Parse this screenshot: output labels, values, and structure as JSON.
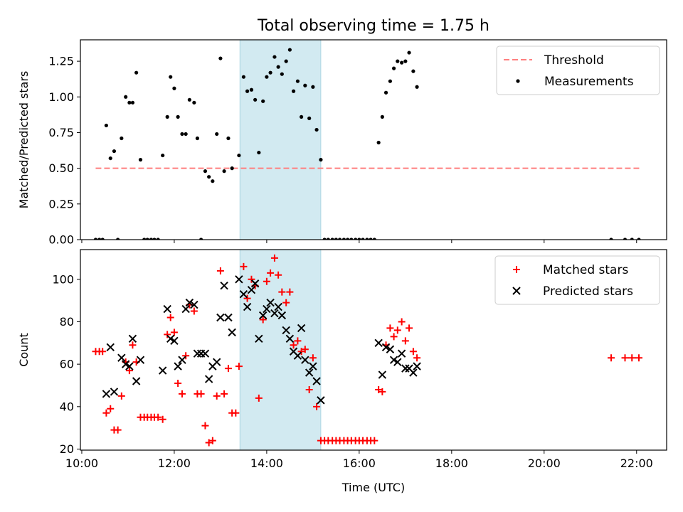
{
  "figure": {
    "title": "Total observing time = 1.75 h"
  },
  "chart_data": [
    {
      "type": "scatter",
      "ylabel": "Matched/Predicted stars",
      "xlabel": "",
      "xlim": [
        9.97,
        22.65
      ],
      "ylim": [
        0,
        1.4
      ],
      "yticks": [
        0.0,
        0.25,
        0.5,
        0.75,
        1.0,
        1.25
      ],
      "ytick_labels": [
        "0.00",
        "0.25",
        "0.50",
        "0.75",
        "1.00",
        "1.25"
      ],
      "xticks": [
        10,
        12,
        14,
        16,
        18,
        20,
        22
      ],
      "xtick_labels": [],
      "grid": false,
      "legend_position": "upper right",
      "shaded_region": {
        "x_start": 13.42,
        "x_end": 15.17,
        "color": "#add8e6"
      },
      "threshold": {
        "name": "Threshold",
        "y": 0.5,
        "x": [
          10.3,
          22.1
        ],
        "color": "#ff7f7f",
        "style": "dashed"
      },
      "series": [
        {
          "name": "Measurements",
          "marker": "dot",
          "color": "#000000",
          "points": [
            [
              10.3,
              0
            ],
            [
              10.38,
              0
            ],
            [
              10.45,
              0
            ],
            [
              10.53,
              0.8
            ],
            [
              10.62,
              0.57
            ],
            [
              10.7,
              0.62
            ],
            [
              10.78,
              0
            ],
            [
              10.86,
              0.71
            ],
            [
              10.95,
              1.0
            ],
            [
              11.03,
              0.96
            ],
            [
              11.1,
              0.96
            ],
            [
              11.18,
              1.17
            ],
            [
              11.27,
              0.56
            ],
            [
              11.35,
              0
            ],
            [
              11.42,
              0
            ],
            [
              11.5,
              0
            ],
            [
              11.57,
              0
            ],
            [
              11.65,
              0
            ],
            [
              11.75,
              0.59
            ],
            [
              11.85,
              0.86
            ],
            [
              11.92,
              1.14
            ],
            [
              12.0,
              1.06
            ],
            [
              12.08,
              0.86
            ],
            [
              12.17,
              0.74
            ],
            [
              12.25,
              0.74
            ],
            [
              12.33,
              0.98
            ],
            [
              12.43,
              0.96
            ],
            [
              12.5,
              0.71
            ],
            [
              12.58,
              0
            ],
            [
              12.67,
              0.48
            ],
            [
              12.75,
              0.44
            ],
            [
              12.83,
              0.41
            ],
            [
              12.92,
              0.74
            ],
            [
              13.0,
              1.27
            ],
            [
              13.08,
              0.48
            ],
            [
              13.17,
              0.71
            ],
            [
              13.25,
              0.5
            ],
            [
              13.4,
              0.59
            ],
            [
              13.5,
              1.14
            ],
            [
              13.58,
              1.04
            ],
            [
              13.67,
              1.05
            ],
            [
              13.75,
              0.98
            ],
            [
              13.83,
              0.61
            ],
            [
              13.92,
              0.97
            ],
            [
              14.0,
              1.14
            ],
            [
              14.08,
              1.17
            ],
            [
              14.17,
              1.28
            ],
            [
              14.25,
              1.21
            ],
            [
              14.33,
              1.16
            ],
            [
              14.42,
              1.25
            ],
            [
              14.5,
              1.33
            ],
            [
              14.58,
              1.04
            ],
            [
              14.67,
              1.11
            ],
            [
              14.75,
              0.86
            ],
            [
              14.83,
              1.08
            ],
            [
              14.92,
              0.85
            ],
            [
              15.0,
              1.07
            ],
            [
              15.08,
              0.77
            ],
            [
              15.17,
              0.56
            ],
            [
              15.25,
              0
            ],
            [
              15.33,
              0
            ],
            [
              15.42,
              0
            ],
            [
              15.5,
              0
            ],
            [
              15.58,
              0
            ],
            [
              15.67,
              0
            ],
            [
              15.75,
              0
            ],
            [
              15.83,
              0
            ],
            [
              15.92,
              0
            ],
            [
              16.0,
              0
            ],
            [
              16.08,
              0
            ],
            [
              16.17,
              0
            ],
            [
              16.25,
              0
            ],
            [
              16.33,
              0
            ],
            [
              16.42,
              0.68
            ],
            [
              16.5,
              0.86
            ],
            [
              16.58,
              1.03
            ],
            [
              16.67,
              1.11
            ],
            [
              16.75,
              1.2
            ],
            [
              16.83,
              1.25
            ],
            [
              16.92,
              1.24
            ],
            [
              17.0,
              1.25
            ],
            [
              17.08,
              1.31
            ],
            [
              17.17,
              1.18
            ],
            [
              17.25,
              1.07
            ],
            [
              21.45,
              0
            ],
            [
              21.75,
              0
            ],
            [
              21.9,
              0
            ],
            [
              22.05,
              0
            ]
          ]
        }
      ]
    },
    {
      "type": "scatter",
      "ylabel": "Count",
      "xlabel": "Time (UTC)",
      "xlim": [
        9.97,
        22.65
      ],
      "ylim": [
        19.5,
        114
      ],
      "yticks": [
        20,
        40,
        60,
        80,
        100
      ],
      "ytick_labels": [
        "20",
        "40",
        "60",
        "80",
        "100"
      ],
      "xticks": [
        10,
        12,
        14,
        16,
        18,
        20,
        22
      ],
      "xtick_labels": [
        "10:00",
        "12:00",
        "14:00",
        "16:00",
        "18:00",
        "20:00",
        "22:00"
      ],
      "grid": false,
      "legend_position": "upper right",
      "shaded_region": {
        "x_start": 13.42,
        "x_end": 15.17,
        "color": "#add8e6"
      },
      "series": [
        {
          "name": "Matched stars",
          "marker": "plus",
          "color": "#ff0000",
          "points": [
            [
              10.3,
              66
            ],
            [
              10.38,
              66
            ],
            [
              10.45,
              66
            ],
            [
              10.53,
              37
            ],
            [
              10.62,
              39
            ],
            [
              10.7,
              29
            ],
            [
              10.78,
              29
            ],
            [
              10.86,
              45
            ],
            [
              10.95,
              61
            ],
            [
              11.03,
              57
            ],
            [
              11.1,
              69
            ],
            [
              11.18,
              61
            ],
            [
              11.27,
              35
            ],
            [
              11.35,
              35
            ],
            [
              11.42,
              35
            ],
            [
              11.5,
              35
            ],
            [
              11.57,
              35
            ],
            [
              11.65,
              35
            ],
            [
              11.75,
              34
            ],
            [
              11.85,
              74
            ],
            [
              11.92,
              82
            ],
            [
              12.0,
              75
            ],
            [
              12.08,
              51
            ],
            [
              12.17,
              46
            ],
            [
              12.25,
              64
            ],
            [
              12.33,
              88
            ],
            [
              12.43,
              85
            ],
            [
              12.5,
              46
            ],
            [
              12.58,
              46
            ],
            [
              12.67,
              31
            ],
            [
              12.75,
              23
            ],
            [
              12.83,
              24
            ],
            [
              12.92,
              45
            ],
            [
              13.0,
              104
            ],
            [
              13.08,
              46
            ],
            [
              13.17,
              58
            ],
            [
              13.25,
              37
            ],
            [
              13.33,
              37
            ],
            [
              13.4,
              59
            ],
            [
              13.5,
              106
            ],
            [
              13.58,
              91
            ],
            [
              13.67,
              100
            ],
            [
              13.75,
              97
            ],
            [
              13.83,
              44
            ],
            [
              13.92,
              81
            ],
            [
              14.0,
              99
            ],
            [
              14.08,
              103
            ],
            [
              14.17,
              110
            ],
            [
              14.25,
              102
            ],
            [
              14.33,
              94
            ],
            [
              14.42,
              89
            ],
            [
              14.5,
              94
            ],
            [
              14.58,
              69
            ],
            [
              14.67,
              71
            ],
            [
              14.75,
              66
            ],
            [
              14.83,
              67
            ],
            [
              14.92,
              48
            ],
            [
              15.0,
              63
            ],
            [
              15.08,
              40
            ],
            [
              15.17,
              24
            ],
            [
              15.25,
              24
            ],
            [
              15.33,
              24
            ],
            [
              15.42,
              24
            ],
            [
              15.5,
              24
            ],
            [
              15.58,
              24
            ],
            [
              15.67,
              24
            ],
            [
              15.75,
              24
            ],
            [
              15.83,
              24
            ],
            [
              15.92,
              24
            ],
            [
              16.0,
              24
            ],
            [
              16.08,
              24
            ],
            [
              16.17,
              24
            ],
            [
              16.25,
              24
            ],
            [
              16.33,
              24
            ],
            [
              16.42,
              48
            ],
            [
              16.5,
              47
            ],
            [
              16.58,
              69
            ],
            [
              16.67,
              77
            ],
            [
              16.75,
              73
            ],
            [
              16.83,
              76
            ],
            [
              16.92,
              80
            ],
            [
              17.0,
              71
            ],
            [
              17.08,
              77
            ],
            [
              17.17,
              66
            ],
            [
              17.25,
              63
            ],
            [
              21.45,
              63
            ],
            [
              21.75,
              63
            ],
            [
              21.9,
              63
            ],
            [
              22.05,
              63
            ]
          ]
        },
        {
          "name": "Predicted stars",
          "marker": "x",
          "color": "#000000",
          "points": [
            [
              10.53,
              46
            ],
            [
              10.62,
              68
            ],
            [
              10.7,
              47
            ],
            [
              10.86,
              63
            ],
            [
              10.95,
              60
            ],
            [
              11.03,
              59
            ],
            [
              11.1,
              72
            ],
            [
              11.18,
              52
            ],
            [
              11.27,
              62
            ],
            [
              11.75,
              57
            ],
            [
              11.85,
              86
            ],
            [
              11.92,
              72
            ],
            [
              12.0,
              71
            ],
            [
              12.08,
              59
            ],
            [
              12.17,
              62
            ],
            [
              12.25,
              86
            ],
            [
              12.33,
              89
            ],
            [
              12.43,
              88
            ],
            [
              12.5,
              65
            ],
            [
              12.58,
              65
            ],
            [
              12.67,
              65
            ],
            [
              12.75,
              53
            ],
            [
              12.83,
              59
            ],
            [
              12.92,
              61
            ],
            [
              13.0,
              82
            ],
            [
              13.08,
              97
            ],
            [
              13.17,
              82
            ],
            [
              13.25,
              75
            ],
            [
              13.4,
              100
            ],
            [
              13.5,
              93
            ],
            [
              13.58,
              87
            ],
            [
              13.67,
              95
            ],
            [
              13.75,
              98
            ],
            [
              13.83,
              72
            ],
            [
              13.92,
              83
            ],
            [
              14.0,
              86
            ],
            [
              14.08,
              89
            ],
            [
              14.17,
              84
            ],
            [
              14.25,
              87
            ],
            [
              14.33,
              83
            ],
            [
              14.42,
              76
            ],
            [
              14.5,
              72
            ],
            [
              14.58,
              66
            ],
            [
              14.67,
              64
            ],
            [
              14.75,
              77
            ],
            [
              14.83,
              62
            ],
            [
              14.92,
              56
            ],
            [
              15.0,
              59
            ],
            [
              15.08,
              52
            ],
            [
              15.17,
              43
            ],
            [
              16.42,
              70
            ],
            [
              16.5,
              55
            ],
            [
              16.58,
              68
            ],
            [
              16.67,
              67
            ],
            [
              16.75,
              62
            ],
            [
              16.83,
              61
            ],
            [
              16.92,
              65
            ],
            [
              17.0,
              58
            ],
            [
              17.08,
              58
            ],
            [
              17.17,
              56
            ],
            [
              17.25,
              59
            ]
          ]
        }
      ]
    }
  ]
}
